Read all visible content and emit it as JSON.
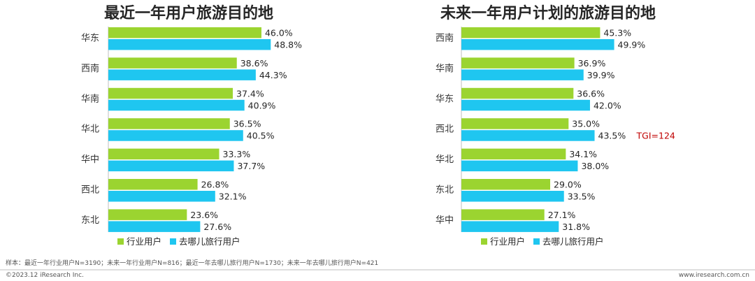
{
  "chart_data": [
    {
      "type": "bar",
      "orientation": "horizontal",
      "title": "最近一年用户旅游目的地",
      "categories": [
        "华东",
        "西南",
        "华南",
        "华北",
        "华中",
        "西北",
        "东北"
      ],
      "series": [
        {
          "name": "行业用户",
          "values": [
            46.0,
            38.6,
            37.4,
            36.5,
            33.3,
            26.8,
            23.6
          ]
        },
        {
          "name": "去哪儿旅行用户",
          "values": [
            48.8,
            44.3,
            40.9,
            40.5,
            37.7,
            32.1,
            27.6
          ]
        }
      ],
      "value_suffix": "%",
      "legend_position": "bottom",
      "colors": [
        "#9bd430",
        "#1fc6f0"
      ]
    },
    {
      "type": "bar",
      "orientation": "horizontal",
      "title": "未来一年用户计划的旅游目的地",
      "categories": [
        "西南",
        "华南",
        "华东",
        "西北",
        "华北",
        "东北",
        "华中"
      ],
      "series": [
        {
          "name": "行业用户",
          "values": [
            45.3,
            36.9,
            36.6,
            35.0,
            34.1,
            29.0,
            27.1
          ]
        },
        {
          "name": "去哪儿旅行用户",
          "values": [
            49.9,
            39.9,
            42.0,
            43.5,
            38.0,
            33.5,
            31.8
          ]
        }
      ],
      "value_suffix": "%",
      "legend_position": "bottom",
      "colors": [
        "#9bd430",
        "#1fc6f0"
      ],
      "annotations": [
        {
          "category": "西北",
          "series": "去哪儿旅行用户",
          "text": "TGI=124",
          "color": "#c00000"
        }
      ]
    }
  ],
  "footer": {
    "sample_note": "样本：最近一年行业用户N=3190；未来一年行业用户N=816；最近一年去哪儿旅行用户N=1730；未来一年去哪儿旅行用户N=421",
    "copyright": "©2023.12 iResearch Inc.",
    "website": "www.iresearch.com.cn"
  },
  "colors": {
    "axis": "#bfbfbf",
    "divider": "#bfbfbf"
  }
}
